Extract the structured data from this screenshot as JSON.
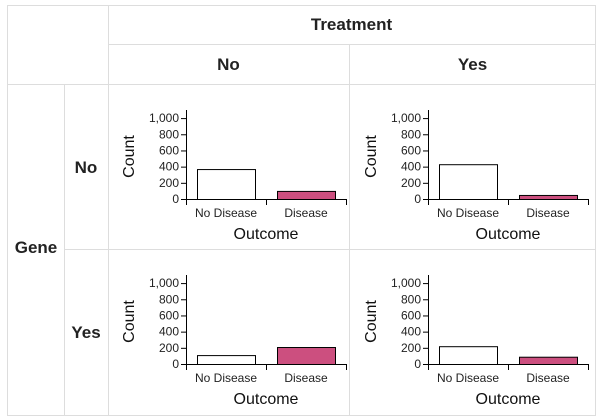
{
  "table": {
    "column_header": "Treatment",
    "row_header": "Gene",
    "column_levels": [
      "No",
      "Yes"
    ],
    "row_levels": [
      "No",
      "Yes"
    ]
  },
  "colors": {
    "no_disease_fill": "#ffffff",
    "disease_fill": "#cc4f7f",
    "border": "#dddddd",
    "axis": "#000000"
  },
  "chart_data": [
    {
      "type": "bar",
      "gene": "No",
      "treatment": "No",
      "categories": [
        "No Disease",
        "Disease"
      ],
      "values": [
        370,
        100
      ],
      "xlabel": "Outcome",
      "ylabel": "Count",
      "ylim": [
        0,
        1100
      ],
      "yticks": [
        "0",
        "200",
        "400",
        "600",
        "800",
        "1,000"
      ]
    },
    {
      "type": "bar",
      "gene": "No",
      "treatment": "Yes",
      "categories": [
        "No Disease",
        "Disease"
      ],
      "values": [
        430,
        50
      ],
      "xlabel": "Outcome",
      "ylabel": "Count",
      "ylim": [
        0,
        1100
      ],
      "yticks": [
        "0",
        "200",
        "400",
        "600",
        "800",
        "1,000"
      ]
    },
    {
      "type": "bar",
      "gene": "Yes",
      "treatment": "No",
      "categories": [
        "No Disease",
        "Disease"
      ],
      "values": [
        110,
        210
      ],
      "xlabel": "Outcome",
      "ylabel": "Count",
      "ylim": [
        0,
        1100
      ],
      "yticks": [
        "0",
        "200",
        "400",
        "600",
        "800",
        "1,000"
      ]
    },
    {
      "type": "bar",
      "gene": "Yes",
      "treatment": "Yes",
      "categories": [
        "No Disease",
        "Disease"
      ],
      "values": [
        220,
        90
      ],
      "xlabel": "Outcome",
      "ylabel": "Count",
      "ylim": [
        0,
        1100
      ],
      "yticks": [
        "0",
        "200",
        "400",
        "600",
        "800",
        "1,000"
      ]
    }
  ]
}
